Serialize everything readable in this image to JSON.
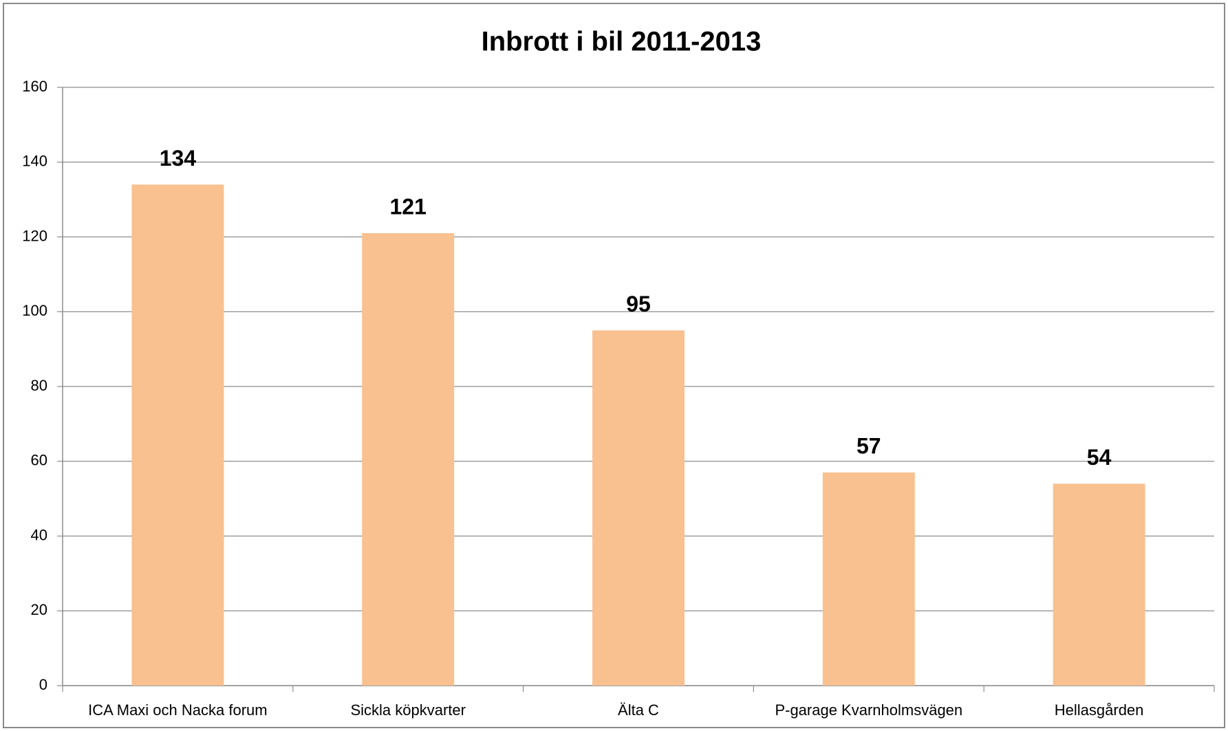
{
  "chart_data": {
    "type": "bar",
    "title": "Inbrott i bil 2011-2013",
    "categories": [
      "ICA Maxi och Nacka forum",
      "Sickla köpkvarter",
      "Älta C",
      "P-garage Kvarnholmsvägen",
      "Hellasgården"
    ],
    "values": [
      134,
      121,
      95,
      57,
      54
    ],
    "color": "#f9c090",
    "ylim": [
      0,
      160
    ],
    "yticks": [
      0,
      20,
      40,
      60,
      80,
      100,
      120,
      140,
      160
    ],
    "grid": true
  }
}
